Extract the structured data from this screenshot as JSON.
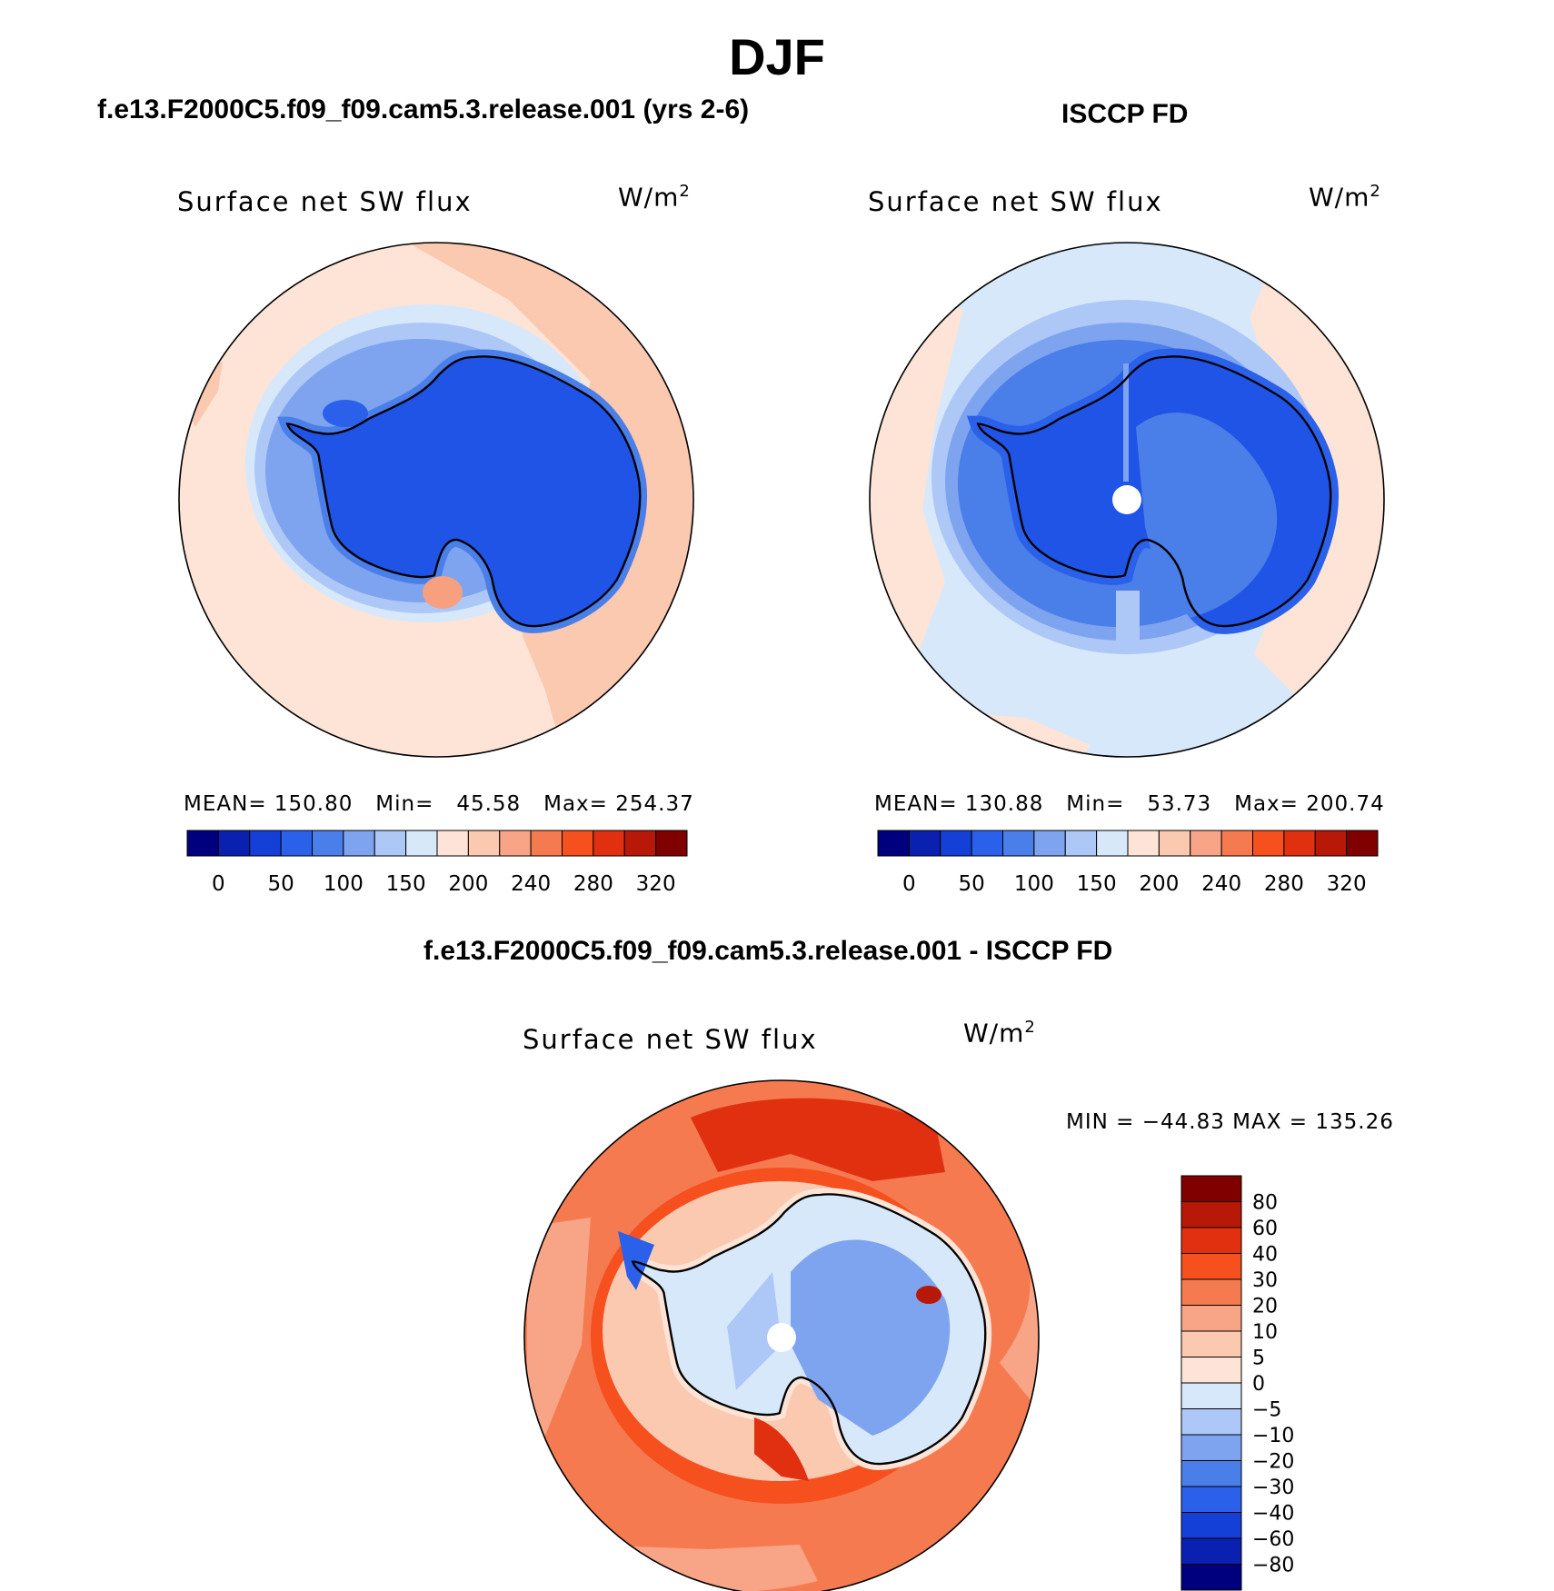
{
  "figure": {
    "title": "DJF",
    "model_title": "f.e13.F2000C5.f09_f09.cam5.3.release.001 (yrs 2-6)",
    "obs_title": "ISCCP FD",
    "diff_title": "f.e13.F2000C5.f09_f09.cam5.3.release.001 - ISCCP FD"
  },
  "panels": {
    "model": {
      "field": "Surface net SW flux",
      "units": "W/m",
      "units_sup": "2",
      "stats": "MEAN= 150.80   Min=   45.58   Max= 254.37"
    },
    "obs": {
      "field": "Surface net SW flux",
      "units": "W/m",
      "units_sup": "2",
      "stats": "MEAN= 130.88   Min=   53.73   Max= 200.74"
    },
    "diff": {
      "field": "Surface net SW flux",
      "units": "W/m",
      "units_sup": "2",
      "stats": "MIN = −44.83 MAX = 135.26"
    }
  },
  "colorbars": {
    "abs": {
      "labels": [
        "0",
        "50",
        "100",
        "150",
        "200",
        "240",
        "280",
        "320"
      ],
      "colors": [
        "#00007f",
        "#0a20b0",
        "#1440d8",
        "#2a60ea",
        "#4a7ee8",
        "#7ea4f0",
        "#adc8f6",
        "#d7e8fb",
        "#fde4d6",
        "#fbc8b0",
        "#f8a486",
        "#f67a50",
        "#f5501e",
        "#e03010",
        "#b81808",
        "#800000"
      ]
    },
    "diff": {
      "labels": [
        "80",
        "60",
        "40",
        "30",
        "20",
        "10",
        "5",
        "0",
        "−5",
        "−10",
        "−20",
        "−30",
        "−40",
        "−60",
        "−80"
      ],
      "colors": [
        "#800000",
        "#b81808",
        "#e03010",
        "#f5501e",
        "#f67a50",
        "#f8a486",
        "#fbc8b0",
        "#fde4d6",
        "#d7e8fb",
        "#adc8f6",
        "#7ea4f0",
        "#4a7ee8",
        "#2a60ea",
        "#1440d8",
        "#0a20b0",
        "#00007f"
      ]
    }
  },
  "chart_data": [
    {
      "type": "heatmap",
      "title": "Surface net SW flux",
      "units": "W/m2",
      "projection": "south polar stereographic",
      "mean": 150.8,
      "min": 45.58,
      "max": 254.37,
      "levels": [
        0,
        25,
        50,
        75,
        100,
        125,
        150,
        175,
        200,
        220,
        240,
        260,
        280,
        300,
        320
      ]
    },
    {
      "type": "heatmap",
      "title": "Surface net SW flux",
      "units": "W/m2",
      "projection": "south polar stereographic",
      "mean": 130.88,
      "min": 53.73,
      "max": 200.74,
      "levels": [
        0,
        25,
        50,
        75,
        100,
        125,
        150,
        175,
        200,
        220,
        240,
        260,
        280,
        300,
        320
      ]
    },
    {
      "type": "heatmap",
      "title": "Surface net SW flux",
      "units": "W/m2",
      "projection": "south polar stereographic",
      "min": -44.83,
      "max": 135.26,
      "levels": [
        -80,
        -60,
        -40,
        -30,
        -20,
        -10,
        -5,
        0,
        5,
        10,
        20,
        30,
        40,
        60,
        80
      ]
    }
  ]
}
